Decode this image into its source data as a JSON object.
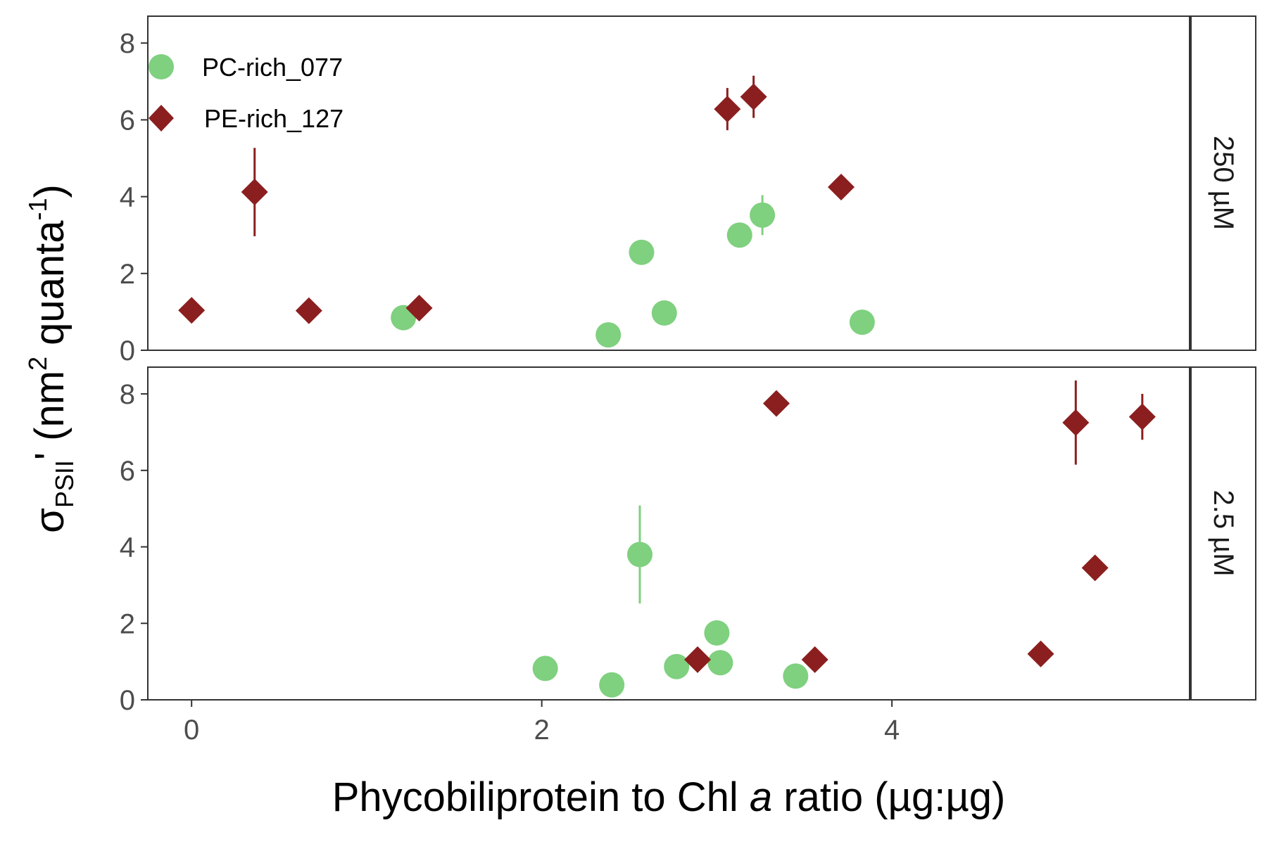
{
  "chart_data": {
    "type": "scatter",
    "xlabel": {
      "prefix": "Phycobiliprotein to Chl ",
      "italic": "a",
      "suffix": " ratio (µg:µg)"
    },
    "ylabel": {
      "sigma": "σ",
      "subscript": "PSII",
      "prime": "'",
      "unit_open": " (nm",
      "unit_sup": "2",
      "unit_mid": " quanta",
      "unit_sup2": "-1",
      "unit_close": ")"
    },
    "xlim": [
      -0.25,
      5.7
    ],
    "ylim": [
      0,
      8.7
    ],
    "x_ticks": [
      0,
      2,
      4
    ],
    "y_ticks": [
      0,
      2,
      4,
      6,
      8
    ],
    "legend": {
      "placement": "top-left",
      "entries": [
        {
          "name": "PC-rich_077",
          "shape": "circle",
          "color": "#7fd07f"
        },
        {
          "name": "PE-rich_127",
          "shape": "diamond",
          "color": "#8b1f1f"
        }
      ]
    },
    "panels": [
      {
        "label": "250 µM",
        "series": [
          {
            "name": "PC-rich_077",
            "points": [
              {
                "x": 1.21,
                "y": 0.85,
                "err": 0
              },
              {
                "x": 2.38,
                "y": 0.4,
                "err": 0
              },
              {
                "x": 2.57,
                "y": 2.55,
                "err": 0
              },
              {
                "x": 2.7,
                "y": 0.97,
                "err": 0
              },
              {
                "x": 3.13,
                "y": 3.0,
                "err": 0
              },
              {
                "x": 3.26,
                "y": 3.52,
                "err": 0.52
              },
              {
                "x": 3.83,
                "y": 0.73,
                "err": 0
              }
            ]
          },
          {
            "name": "PE-rich_127",
            "points": [
              {
                "x": 0.0,
                "y": 1.04,
                "err": 0
              },
              {
                "x": 0.36,
                "y": 4.12,
                "err": 1.15
              },
              {
                "x": 0.67,
                "y": 1.03,
                "err": 0
              },
              {
                "x": 1.3,
                "y": 1.1,
                "err": 0
              },
              {
                "x": 3.06,
                "y": 6.28,
                "err": 0.55
              },
              {
                "x": 3.21,
                "y": 6.6,
                "err": 0.55
              },
              {
                "x": 3.71,
                "y": 4.25,
                "err": 0
              }
            ]
          }
        ]
      },
      {
        "label": "2.5 µM",
        "series": [
          {
            "name": "PC-rich_077",
            "points": [
              {
                "x": 2.02,
                "y": 0.82,
                "err": 0
              },
              {
                "x": 2.4,
                "y": 0.39,
                "err": 0
              },
              {
                "x": 2.56,
                "y": 3.8,
                "err": 1.28
              },
              {
                "x": 2.77,
                "y": 0.87,
                "err": 0
              },
              {
                "x": 3.0,
                "y": 1.75,
                "err": 0
              },
              {
                "x": 3.02,
                "y": 0.97,
                "err": 0
              },
              {
                "x": 3.45,
                "y": 0.62,
                "err": 0
              }
            ]
          },
          {
            "name": "PE-rich_127",
            "points": [
              {
                "x": 2.89,
                "y": 1.05,
                "err": 0
              },
              {
                "x": 3.34,
                "y": 7.75,
                "err": 0
              },
              {
                "x": 3.56,
                "y": 1.05,
                "err": 0
              },
              {
                "x": 4.85,
                "y": 1.2,
                "err": 0
              },
              {
                "x": 5.05,
                "y": 7.25,
                "err": 1.1
              },
              {
                "x": 5.16,
                "y": 3.45,
                "err": 0
              },
              {
                "x": 5.43,
                "y": 7.4,
                "err": 0.6
              }
            ]
          }
        ]
      }
    ]
  }
}
